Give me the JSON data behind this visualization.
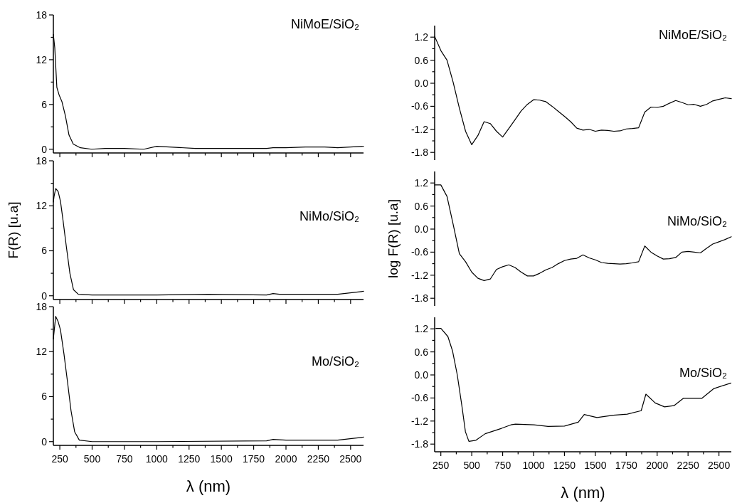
{
  "chart_data": [
    {
      "type": "line",
      "xlim": [
        200,
        2600
      ],
      "ylim": [
        -0.5,
        18
      ],
      "yticks": [
        0,
        {
          "value": 3,
          "label": null
        },
        6,
        {
          "value": 9,
          "label": null
        },
        12,
        {
          "value": 15,
          "label": null
        },
        18
      ],
      "xticks": [
        250,
        {
          "value": 375,
          "label": null
        },
        500,
        {
          "value": 625,
          "label": null
        },
        750,
        {
          "value": 875,
          "label": null
        },
        1000,
        {
          "value": 1125,
          "label": null
        },
        1250,
        {
          "value": 1375,
          "label": null
        },
        1500,
        {
          "value": 1625,
          "label": null
        },
        1750,
        {
          "value": 1875,
          "label": null
        },
        2000,
        {
          "value": 2125,
          "label": null
        },
        2250,
        {
          "value": 2375,
          "label": null
        },
        2500
      ],
      "tick_labels": "y",
      "annotations": [
        "NiMoE/SiO₂"
      ],
      "series": [
        {
          "color": "#000000",
          "x": [
            200,
            211,
            227,
            244,
            266,
            293,
            321,
            354,
            409,
            497,
            600,
            750,
            900,
            1000,
            1100,
            1300,
            1600,
            1850,
            1900,
            2000,
            2150,
            2300,
            2400,
            2600
          ],
          "values": [
            15.4,
            13.6,
            8.3,
            7.3,
            6.4,
            4.5,
            1.9,
            0.7,
            0.2,
            0,
            0.1,
            0.1,
            0,
            0.4,
            0.3,
            0.1,
            0.1,
            0.1,
            0.2,
            0.2,
            0.3,
            0.3,
            0.2,
            0.4
          ]
        }
      ]
    },
    {
      "type": "line",
      "categories": [
        null,
        null,
        null,
        null,
        null,
        null,
        null,
        null,
        null,
        null,
        null,
        null,
        null,
        null,
        null,
        null,
        null,
        null,
        null,
        null,
        null,
        null,
        null,
        null,
        null,
        null,
        null,
        null,
        null,
        null,
        null,
        null,
        null,
        null,
        null,
        null,
        null,
        null,
        null,
        null,
        null,
        null,
        null,
        null,
        null,
        null,
        null,
        null,
        null
      ],
      "ylim": [
        -2,
        1.5
      ],
      "yticks": [
        -1.8,
        {
          "value": -1.5,
          "label": null
        },
        -1.2,
        {
          "value": -0.9,
          "label": null
        },
        -0.6,
        {
          "value": -0.3,
          "label": null
        },
        {
          "value": 0,
          "label": "0.0"
        },
        {
          "value": 0.3,
          "label": null
        },
        0.6,
        {
          "value": 0.9,
          "label": null
        },
        1.2
      ],
      "tick_labels": "y",
      "annotations": [
        "NiMoE/SiO₂"
      ],
      "series": [
        {
          "color": "#000000",
          "values": [
            1.22,
            0.85,
            0.6,
            0.02,
            -0.65,
            -1.25,
            -1.6,
            -1.36,
            -1.0,
            -1.05,
            -1.25,
            -1.4,
            -1.18,
            -0.95,
            -0.72,
            -0.55,
            -0.43,
            -0.44,
            -0.48,
            -0.6,
            -0.73,
            -0.86,
            -1.0,
            -1.17,
            -1.22,
            -1.2,
            -1.25,
            -1.22,
            -1.23,
            -1.25,
            -1.24,
            -1.19,
            -1.18,
            -1.16,
            -0.75,
            -0.62,
            -0.63,
            -0.6,
            -0.52,
            -0.45,
            -0.5,
            -0.56,
            -0.55,
            -0.6,
            -0.55,
            -0.46,
            -0.42,
            -0.38,
            -0.4
          ]
        }
      ]
    },
    {
      "type": "line",
      "xlim": [
        200,
        2600
      ],
      "ylim": [
        -0.5,
        18
      ],
      "ylabel": "F(R) [u.a]",
      "yticks": [
        0,
        {
          "value": 3,
          "label": null
        },
        6,
        {
          "value": 9,
          "label": null
        },
        12,
        {
          "value": 15,
          "label": null
        },
        18
      ],
      "xticks": [
        250,
        {
          "value": 375,
          "label": null
        },
        500,
        {
          "value": 625,
          "label": null
        },
        750,
        {
          "value": 875,
          "label": null
        },
        1000,
        {
          "value": 1125,
          "label": null
        },
        1250,
        {
          "value": 1375,
          "label": null
        },
        1500,
        {
          "value": 1625,
          "label": null
        },
        1750,
        {
          "value": 1875,
          "label": null
        },
        2000,
        {
          "value": 2125,
          "label": null
        },
        2250,
        {
          "value": 2375,
          "label": null
        },
        2500
      ],
      "tick_labels": "y",
      "annotations": [
        "NiMo/SiO₂"
      ],
      "series": [
        {
          "color": "#000000",
          "x": [
            200,
            205,
            218,
            237,
            255,
            273,
            301,
            328,
            356,
            393,
            500,
            1000,
            1400,
            1850,
            1900,
            1950,
            2400,
            2600
          ],
          "values": [
            12.5,
            13.2,
            14.3,
            13.9,
            12.6,
            10.3,
            6.5,
            3.0,
            0.8,
            0.2,
            0.1,
            0.1,
            0.2,
            0.1,
            0.3,
            0.2,
            0.2,
            0.6
          ]
        }
      ]
    },
    {
      "type": "line",
      "categories": [
        null,
        null,
        null,
        null,
        null,
        null,
        null,
        null,
        null,
        null,
        null,
        null,
        null,
        null,
        null,
        null,
        null,
        null,
        null,
        null,
        null,
        null,
        null,
        null,
        null,
        null,
        null,
        null,
        null,
        null,
        null,
        null,
        null,
        null,
        null,
        null,
        null,
        null,
        null,
        null,
        null,
        null,
        null,
        null,
        null,
        null,
        null,
        null,
        null
      ],
      "ylim": [
        -2,
        1.5
      ],
      "ylabel": "log F(R) [u.a]",
      "yticks": [
        -1.8,
        {
          "value": -1.5,
          "label": null
        },
        -1.2,
        {
          "value": -0.9,
          "label": null
        },
        -0.6,
        {
          "value": -0.3,
          "label": null
        },
        {
          "value": 0,
          "label": "0.0"
        },
        {
          "value": 0.3,
          "label": null
        },
        0.6,
        {
          "value": 0.9,
          "label": null
        },
        1.2
      ],
      "tick_labels": "y",
      "annotations": [
        "NiMo/SiO₂"
      ],
      "series": [
        {
          "color": "#000000",
          "values": [
            1.15,
            1.15,
            0.85,
            0.12,
            -0.64,
            -0.85,
            -1.12,
            -1.28,
            -1.34,
            -1.3,
            -1.05,
            -0.98,
            -0.93,
            -1.0,
            -1.12,
            -1.22,
            -1.22,
            -1.15,
            -1.06,
            -1.0,
            -0.9,
            -0.82,
            -0.78,
            -0.76,
            -0.67,
            -0.75,
            -0.8,
            -0.87,
            -0.89,
            -0.9,
            -0.91,
            -0.9,
            -0.88,
            -0.85,
            -0.44,
            -0.6,
            -0.7,
            -0.78,
            -0.77,
            -0.74,
            -0.6,
            -0.58,
            -0.6,
            -0.62,
            -0.5,
            -0.39,
            -0.33,
            -0.27,
            -0.2
          ]
        }
      ]
    },
    {
      "type": "line",
      "xlim": [
        200,
        2600
      ],
      "ylim": [
        -0.5,
        18
      ],
      "xlabel": "λ (nm)",
      "yticks": [
        0,
        {
          "value": 3,
          "label": null
        },
        6,
        {
          "value": 9,
          "label": null
        },
        12,
        {
          "value": 15,
          "label": null
        },
        18
      ],
      "xticks": [
        250,
        {
          "value": 375,
          "label": null
        },
        500,
        {
          "value": 625,
          "label": null
        },
        750,
        {
          "value": 875,
          "label": null
        },
        1000,
        {
          "value": 1125,
          "label": null
        },
        1250,
        {
          "value": 1375,
          "label": null
        },
        1500,
        {
          "value": 1625,
          "label": null
        },
        1750,
        {
          "value": 1875,
          "label": null
        },
        2000,
        {
          "value": 2125,
          "label": null
        },
        2250,
        {
          "value": 2375,
          "label": null
        },
        2500
      ],
      "annotations": [
        "Mo/SiO₂"
      ],
      "series": [
        {
          "color": "#000000",
          "x": [
            200,
            218,
            237,
            255,
            282,
            310,
            337,
            365,
            401,
            500,
            1000,
            1850,
            1900,
            2000,
            2400,
            2600
          ],
          "values": [
            13.7,
            16.7,
            16.0,
            14.9,
            11.7,
            7.9,
            4.1,
            1.3,
            0.2,
            0,
            0,
            0.1,
            0.3,
            0.2,
            0.2,
            0.6
          ]
        }
      ]
    },
    {
      "type": "line",
      "xlim": [
        200,
        2600
      ],
      "ylim": [
        -2,
        1.5
      ],
      "xlabel": "λ (nm)",
      "yticks": [
        -1.8,
        {
          "value": -1.5,
          "label": null
        },
        -1.2,
        {
          "value": -0.9,
          "label": null
        },
        -0.6,
        {
          "value": -0.3,
          "label": null
        },
        {
          "value": 0,
          "label": "0.0"
        },
        {
          "value": 0.3,
          "label": null
        },
        0.6,
        {
          "value": 0.9,
          "label": null
        },
        1.2
      ],
      "xticks": [
        250,
        {
          "value": 375,
          "label": null
        },
        500,
        {
          "value": 625,
          "label": null
        },
        750,
        {
          "value": 875,
          "label": null
        },
        1000,
        {
          "value": 1125,
          "label": null
        },
        1250,
        {
          "value": 1375,
          "label": null
        },
        1500,
        {
          "value": 1625,
          "label": null
        },
        1750,
        {
          "value": 1875,
          "label": null
        },
        2000,
        {
          "value": 2125,
          "label": null
        },
        2250,
        {
          "value": 2375,
          "label": null
        },
        2500
      ],
      "annotations": [
        "Mo/SiO₂"
      ],
      "series": [
        {
          "color": "#000000",
          "x": [
            210,
            251,
            307,
            345,
            383,
            420,
            449,
            477,
            534,
            609,
            741,
            816,
            854,
            1004,
            1117,
            1250,
            1362,
            1410,
            1513,
            1645,
            1758,
            1871,
            1909,
            1984,
            2060,
            2136,
            2211,
            2286,
            2361,
            2456,
            2597
          ],
          "values": [
            1.21,
            1.21,
            1.0,
            0.62,
            0.0,
            -0.8,
            -1.48,
            -1.73,
            -1.7,
            -1.53,
            -1.39,
            -1.3,
            -1.28,
            -1.3,
            -1.34,
            -1.33,
            -1.23,
            -1.03,
            -1.11,
            -1.05,
            -1.02,
            -0.93,
            -0.5,
            -0.73,
            -0.83,
            -0.8,
            -0.61,
            -0.61,
            -0.61,
            -0.36,
            -0.21
          ]
        }
      ]
    }
  ]
}
